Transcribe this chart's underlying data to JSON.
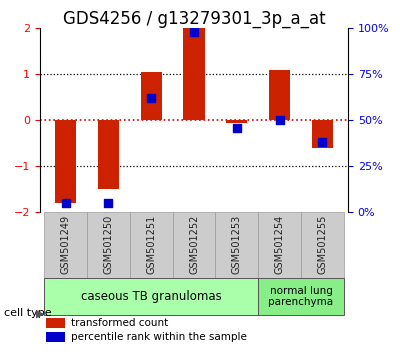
{
  "title": "GDS4256 / g13279301_3p_a_at",
  "samples": [
    "GSM501249",
    "GSM501250",
    "GSM501251",
    "GSM501252",
    "GSM501253",
    "GSM501254",
    "GSM501255"
  ],
  "red_values": [
    -1.8,
    -1.5,
    1.05,
    2.0,
    -0.05,
    1.1,
    -0.6
  ],
  "blue_values": [
    5,
    5,
    62,
    98,
    46,
    50,
    38
  ],
  "ylim_left": [
    -2,
    2
  ],
  "ylim_right": [
    0,
    100
  ],
  "right_ticks": [
    0,
    25,
    50,
    75,
    100
  ],
  "right_tick_labels": [
    "0%",
    "25%",
    "50%",
    "75%",
    "100%"
  ],
  "left_ticks": [
    -2,
    -1,
    0,
    1,
    2
  ],
  "red_color": "#cc2200",
  "blue_color": "#0000cc",
  "bar_width": 0.5,
  "blue_square_size": 40,
  "group0_indices": [
    0,
    1,
    2,
    3,
    4
  ],
  "group1_indices": [
    5,
    6
  ],
  "group0_label": "caseous TB granulomas",
  "group1_label": "normal lung\nparenchyma",
  "group0_color": "#aaffaa",
  "group1_color": "#88ee88",
  "cell_type_label": "cell type",
  "legend_red": "transformed count",
  "legend_blue": "percentile rank within the sample",
  "hline_0_color": "#cc0000",
  "hline_1_color": "#000000",
  "bg_xtick": "#cccccc",
  "xtick_edge_color": "#999999",
  "title_fontsize": 12,
  "tick_fontsize": 8,
  "sample_fontsize": 7
}
